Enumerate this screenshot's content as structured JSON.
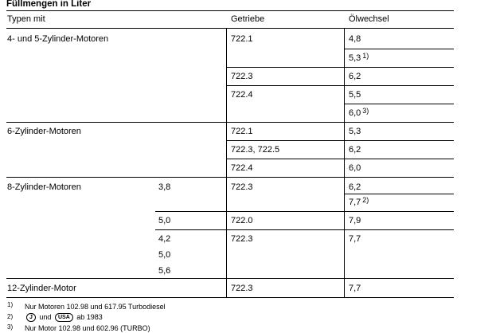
{
  "title": "Füllmengen in Liter",
  "header": {
    "col_type": "Typen mit",
    "col_gear": "Getriebe",
    "col_oil": "Ölwechsel"
  },
  "groups": {
    "g4": {
      "engine": "4- und 5-Zylinder-Motoren",
      "r1": {
        "gear": "722.1",
        "oil": "4,8"
      },
      "r2": {
        "oil": "5,3",
        "note": "1)"
      },
      "r3": {
        "gear": "722.3",
        "oil": "6,2"
      },
      "r4": {
        "gear": "722.4",
        "oil": "5,5"
      },
      "r5": {
        "oil": "6,0",
        "note": "3)"
      }
    },
    "g6": {
      "engine": "6-Zylinder-Motoren",
      "r1": {
        "gear": "722.1",
        "oil": "5,3"
      },
      "r2": {
        "gear": "722.3, 722.5",
        "oil": "6,2"
      },
      "r3": {
        "gear": "722.4",
        "oil": "6,0"
      }
    },
    "g8": {
      "engine": "8-Zylinder-Motoren",
      "r1": {
        "displacement": "3,8",
        "gear": "722.3",
        "oil": "6,2"
      },
      "r2": {
        "oil": "7,7",
        "note": "2)"
      },
      "r3": {
        "displacement": "5,0",
        "gear": "722.0",
        "oil": "7,9"
      },
      "r4": {
        "disp_a": "4,2",
        "disp_b": "5,0",
        "disp_c": "5,6",
        "gear": "722.3",
        "oil": "7,7"
      }
    },
    "g12": {
      "engine": "12-Zylinder-Motor",
      "r1": {
        "gear": "722.3",
        "oil": "7,7"
      }
    }
  },
  "footnotes": {
    "f1": {
      "mark": "1)",
      "text": "Nur Motoren 102.98 und 617.95 Turbodiesel"
    },
    "f2": {
      "mark": "2)",
      "badge_a": "J",
      "mid": "und",
      "badge_b": "USA",
      "text": "ab 1983"
    },
    "f3": {
      "mark": "3)",
      "text": "Nur Motor 102.98 und 602.96 (TURBO)"
    }
  }
}
